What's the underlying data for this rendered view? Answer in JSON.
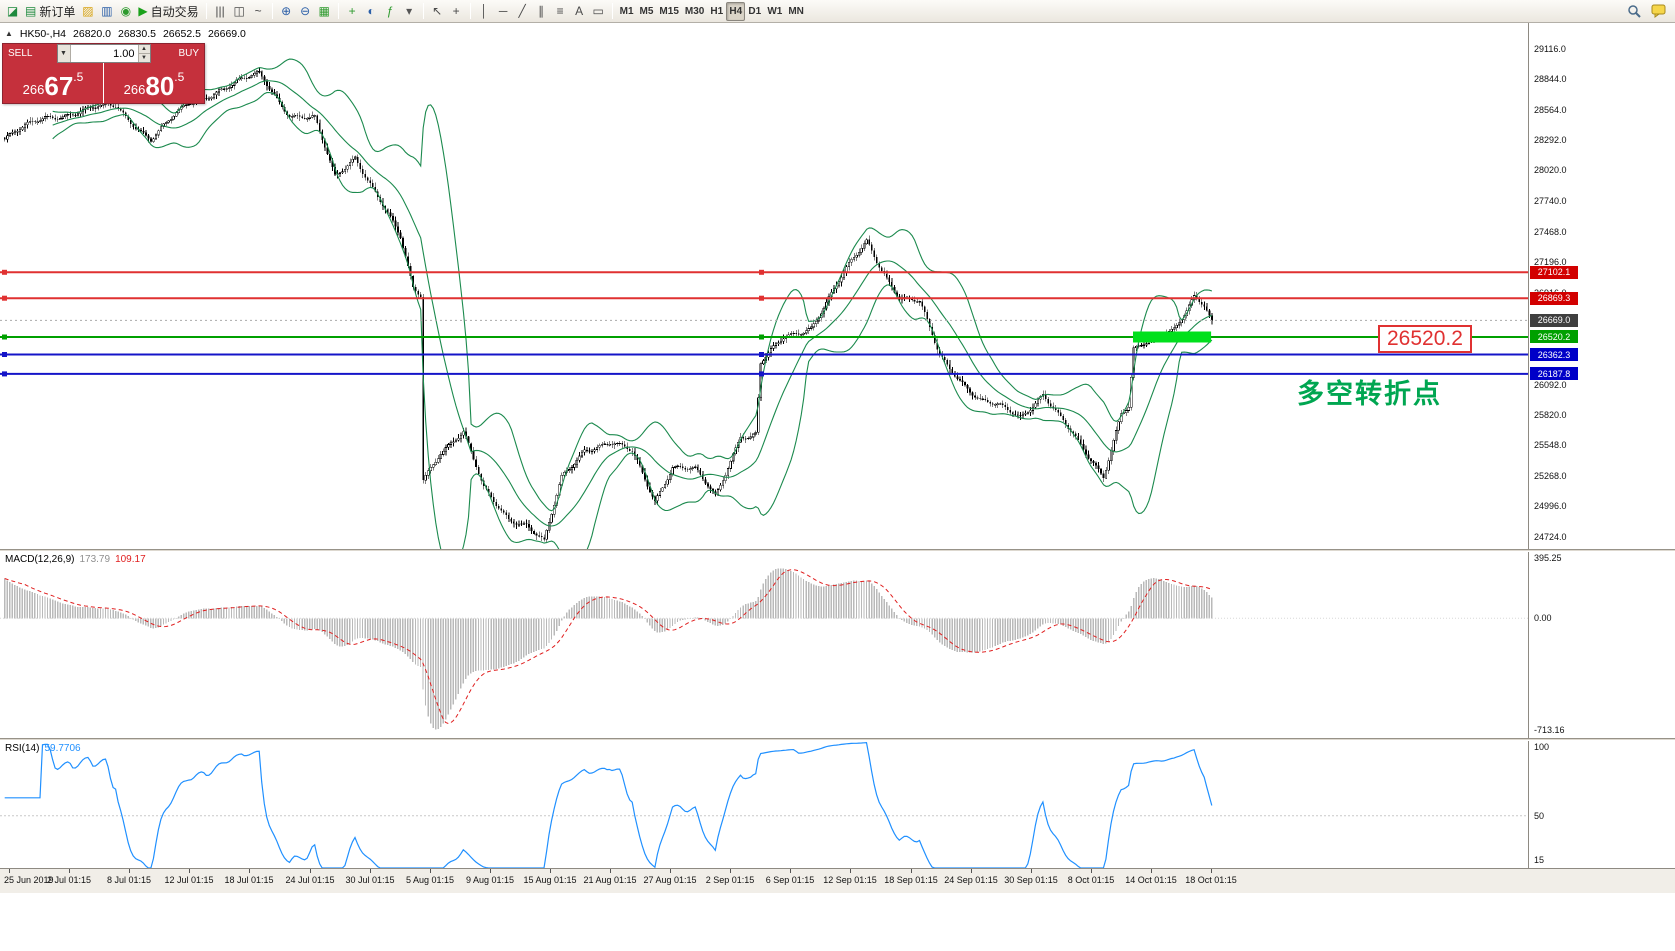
{
  "toolbar": {
    "groups": [
      {
        "items": [
          {
            "name": "app-button",
            "glyph": "◪",
            "color": "#1e8a3e"
          },
          {
            "name": "new-order-button",
            "glyph": "▤",
            "color": "#1e8a3e",
            "label": "新订单"
          },
          {
            "name": "profiles-button",
            "glyph": "▨",
            "color": "#d8a413"
          },
          {
            "name": "market-watch-button",
            "glyph": "▥",
            "color": "#2b5fa8"
          },
          {
            "name": "navigator-button",
            "glyph": "◉",
            "color": "#2d9a2d"
          },
          {
            "name": "autotrading-button",
            "glyph": "▶",
            "color": "#1aa11a",
            "label": "自动交易"
          }
        ]
      },
      {
        "items": [
          {
            "name": "bar-chart-button",
            "glyph": "|||"
          },
          {
            "name": "candlestick-chart-button",
            "glyph": "◫"
          },
          {
            "name": "line-chart-button",
            "glyph": "~"
          }
        ]
      },
      {
        "items": [
          {
            "name": "zoom-in-button",
            "glyph": "⊕",
            "color": "#2b5fa8"
          },
          {
            "name": "zoom-out-button",
            "glyph": "⊖",
            "color": "#2b5fa8"
          },
          {
            "name": "tile-windows-button",
            "glyph": "▦",
            "color": "#2d9a2d"
          }
        ]
      },
      {
        "items": [
          {
            "name": "new-chart-button",
            "glyph": "+",
            "color": "#2d9a2d"
          },
          {
            "name": "period-dropdown-button",
            "glyph": "◐",
            "color": "#2b5fa8"
          },
          {
            "name": "indicators-button",
            "glyph": "ƒ",
            "color": "#2d9a2d"
          },
          {
            "name": "templates-button",
            "glyph": "▾",
            "color": "#555555"
          }
        ]
      },
      {
        "items": [
          {
            "name": "cursor-button",
            "glyph": "↖"
          },
          {
            "name": "crosshair-button",
            "glyph": "+"
          }
        ]
      },
      {
        "items": [
          {
            "name": "vertical-line-button",
            "glyph": "│"
          },
          {
            "name": "horizontal-line-button",
            "glyph": "─"
          },
          {
            "name": "trendline-button",
            "glyph": "╱"
          },
          {
            "name": "channel-button",
            "glyph": "∥"
          },
          {
            "name": "fibonacci-button",
            "glyph": "≡"
          },
          {
            "name": "text-button",
            "glyph": "A"
          },
          {
            "name": "label-button",
            "glyph": "▭"
          }
        ]
      },
      {
        "items": [
          {
            "name": "tf-m1-button",
            "tf": true,
            "label": "M1"
          },
          {
            "name": "tf-m5-button",
            "tf": true,
            "label": "M5"
          },
          {
            "name": "tf-m15-button",
            "tf": true,
            "label": "M15"
          },
          {
            "name": "tf-m30-button",
            "tf": true,
            "label": "M30"
          },
          {
            "name": "tf-h1-button",
            "tf": true,
            "label": "H1"
          },
          {
            "name": "tf-h4-button",
            "tf": true,
            "label": "H4",
            "active": true
          },
          {
            "name": "tf-d1-button",
            "tf": true,
            "label": "D1"
          },
          {
            "name": "tf-w1-button",
            "tf": true,
            "label": "W1"
          },
          {
            "name": "tf-mn-button",
            "tf": true,
            "label": "MN"
          }
        ]
      }
    ]
  },
  "quote": {
    "collapse_icon": "▲",
    "symbol": "HK50-,H4",
    "ohlc": {
      "open": "26820.0",
      "high": "26830.5",
      "low": "26652.5",
      "close": "26669.0"
    },
    "sell": {
      "label": "SELL",
      "price": {
        "pre": "266",
        "big": "67",
        "suf": ".5"
      },
      "full": "26667.5"
    },
    "buy": {
      "label": "BUY",
      "price": {
        "pre": "266",
        "big": "80",
        "suf": ".5"
      },
      "full": "26680.5"
    },
    "volume": "1.00"
  },
  "annotations": {
    "callout": "26520.2",
    "turning_point": "多空转折点"
  },
  "chart_data": {
    "type": "candlestick",
    "symbol": "HK50-,H4",
    "bars": 480,
    "ylim": [
      24612,
      29346
    ],
    "price_anchors": [
      [
        0,
        28300
      ],
      [
        16,
        28500
      ],
      [
        44,
        28600
      ],
      [
        58,
        28300
      ],
      [
        73,
        28620
      ],
      [
        85,
        28750
      ],
      [
        101,
        28880
      ],
      [
        113,
        28530
      ],
      [
        123,
        28480
      ],
      [
        131,
        27950
      ],
      [
        139,
        28150
      ],
      [
        149,
        27750
      ],
      [
        157,
        27400
      ],
      [
        162,
        26950
      ],
      [
        165,
        26900
      ],
      [
        166,
        25250
      ],
      [
        173,
        25500
      ],
      [
        182,
        25650
      ],
      [
        190,
        25150
      ],
      [
        200,
        24900
      ],
      [
        207,
        24830
      ],
      [
        214,
        24660
      ],
      [
        221,
        25250
      ],
      [
        230,
        25520
      ],
      [
        240,
        25560
      ],
      [
        249,
        25480
      ],
      [
        258,
        25060
      ],
      [
        265,
        25360
      ],
      [
        274,
        25310
      ],
      [
        282,
        25080
      ],
      [
        292,
        25650
      ],
      [
        296,
        25620
      ],
      [
        298,
        25650
      ],
      [
        300,
        26280
      ],
      [
        309,
        26500
      ],
      [
        320,
        26620
      ],
      [
        332,
        27050
      ],
      [
        342,
        27380
      ],
      [
        347,
        27180
      ],
      [
        355,
        26880
      ],
      [
        363,
        26820
      ],
      [
        371,
        26350
      ],
      [
        379,
        26150
      ],
      [
        387,
        25950
      ],
      [
        395,
        25880
      ],
      [
        403,
        25800
      ],
      [
        412,
        26020
      ],
      [
        421,
        25720
      ],
      [
        430,
        25430
      ],
      [
        436,
        25280
      ],
      [
        443,
        25850
      ],
      [
        446,
        25900
      ],
      [
        448,
        26400
      ],
      [
        456,
        26480
      ],
      [
        464,
        26600
      ],
      [
        472,
        26900
      ],
      [
        476,
        26800
      ],
      [
        479,
        26669
      ]
    ],
    "bollinger": {
      "period": 20,
      "deviation": 2,
      "color": "#1c8a4e"
    },
    "price_ticks": [
      "29116.0",
      "28844.0",
      "28564.0",
      "28292.0",
      "28020.0",
      "27740.0",
      "27468.0",
      "27196.0",
      "26916.0",
      "26092.0",
      "25820.0",
      "25548.0",
      "25268.0",
      "24996.0",
      "24724.0"
    ],
    "hlines": [
      {
        "price": 27102.1,
        "label": "27102.1",
        "color": "#e03131",
        "box": "#d20000"
      },
      {
        "price": 26869.3,
        "label": "26869.3",
        "color": "#e03131",
        "box": "#d20000"
      },
      {
        "price": 26520.2,
        "label": "26520.2",
        "color": "#00a000",
        "box": "#00a000"
      },
      {
        "price": 26362.3,
        "label": "26362.3",
        "color": "#1414c8",
        "box": "#0000c8"
      },
      {
        "price": 26187.8,
        "label": "26187.8",
        "color": "#1414c8",
        "box": "#0000c8"
      }
    ],
    "last_price": {
      "value": 26669.0,
      "label": "26669.0",
      "box": "#3f3f3f"
    },
    "highlight_band": {
      "price": 26520.2,
      "from_bar": 448,
      "to_bar": 479,
      "color": "#00e01c",
      "thickness": 11
    },
    "x_labels": [
      "25 Jun 2019",
      "2 Jul 01:15",
      "8 Jul 01:15",
      "12 Jul 01:15",
      "18 Jul 01:15",
      "24 Jul 01:15",
      "30 Jul 01:15",
      "5 Aug 01:15",
      "9 Aug 01:15",
      "15 Aug 01:15",
      "21 Aug 01:15",
      "27 Aug 01:15",
      "2 Sep 01:15",
      "6 Sep 01:15",
      "12 Sep 01:15",
      "18 Sep 01:15",
      "24 Sep 01:15",
      "30 Sep 01:15",
      "8 Oct 01:15",
      "14 Oct 01:15",
      "18 Oct 01:15"
    ],
    "macd": {
      "label": "MACD(12,26,9)",
      "fast": 12,
      "slow": 26,
      "signal": 9,
      "value_main": "173.79",
      "value_signal": "109.17",
      "ylim": [
        -713.16,
        395.25
      ],
      "axis_labels": [
        {
          "v": 395.25,
          "t": "395.25"
        },
        {
          "v": 0,
          "t": "0.00"
        },
        {
          "v": -713.16,
          "t": "-713.16"
        }
      ],
      "hist_color": "#b9b9b9",
      "signal_color": "#e02020"
    },
    "rsi": {
      "label": "RSI(14)",
      "period": 14,
      "value": "59.7706",
      "ylim": [
        15,
        100
      ],
      "axis_labels": [
        {
          "v": 100,
          "t": "100"
        },
        {
          "v": 50,
          "t": "50"
        },
        {
          "v": 15,
          "t": "15"
        }
      ],
      "color": "#2090ff",
      "level": 50
    }
  }
}
